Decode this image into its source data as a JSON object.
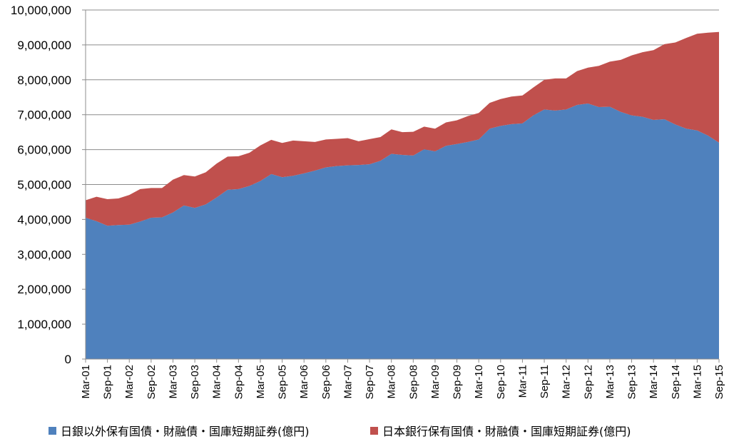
{
  "chart_data": {
    "type": "area",
    "stacked": true,
    "title": "",
    "xlabel": "",
    "ylabel": "",
    "ylim": [
      0,
      10000000
    ],
    "yticks": [
      0,
      1000000,
      2000000,
      3000000,
      4000000,
      5000000,
      6000000,
      7000000,
      8000000,
      9000000,
      10000000
    ],
    "ytick_labels": [
      "0",
      "1,000,000",
      "2,000,000",
      "3,000,000",
      "4,000,000",
      "5,000,000",
      "6,000,000",
      "7,000,000",
      "8,000,000",
      "9,000,000",
      "10,000,000"
    ],
    "x": [
      "Mar-01",
      "Jun-01",
      "Sep-01",
      "Dec-01",
      "Mar-02",
      "Jun-02",
      "Sep-02",
      "Dec-02",
      "Mar-03",
      "Jun-03",
      "Sep-03",
      "Dec-03",
      "Mar-04",
      "Jun-04",
      "Sep-04",
      "Dec-04",
      "Mar-05",
      "Jun-05",
      "Sep-05",
      "Dec-05",
      "Mar-06",
      "Jun-06",
      "Sep-06",
      "Dec-06",
      "Mar-07",
      "Jun-07",
      "Sep-07",
      "Dec-07",
      "Mar-08",
      "Jun-08",
      "Sep-08",
      "Dec-08",
      "Mar-09",
      "Jun-09",
      "Sep-09",
      "Dec-09",
      "Mar-10",
      "Jun-10",
      "Sep-10",
      "Dec-10",
      "Mar-11",
      "Jun-11",
      "Sep-11",
      "Dec-11",
      "Mar-12",
      "Jun-12",
      "Sep-12",
      "Dec-12",
      "Mar-13",
      "Jun-13",
      "Sep-13",
      "Dec-13",
      "Mar-14",
      "Jun-14",
      "Sep-14",
      "Dec-14",
      "Mar-15",
      "Jun-15",
      "Sep-15"
    ],
    "xtick_labels": [
      "Mar-01",
      "Sep-01",
      "Mar-02",
      "Sep-02",
      "Mar-03",
      "Sep-03",
      "Mar-04",
      "Sep-04",
      "Mar-05",
      "Sep-05",
      "Mar-06",
      "Sep-06",
      "Mar-07",
      "Sep-07",
      "Mar-08",
      "Sep-08",
      "Mar-09",
      "Sep-09",
      "Mar-10",
      "Sep-10",
      "Mar-11",
      "Sep-11",
      "Mar-12",
      "Sep-12",
      "Mar-13",
      "Sep-13",
      "Mar-14",
      "Sep-14",
      "Mar-15",
      "Sep-15"
    ],
    "grid": "horizontal",
    "legend_position": "bottom",
    "series": [
      {
        "name": "日銀以外保有国債・財融債・国庫短期証券(億円)",
        "color": "#4F81BD",
        "values": [
          4050000,
          3950000,
          3820000,
          3840000,
          3850000,
          3940000,
          4050000,
          4060000,
          4200000,
          4400000,
          4330000,
          4430000,
          4630000,
          4850000,
          4870000,
          4960000,
          5100000,
          5300000,
          5210000,
          5250000,
          5320000,
          5400000,
          5490000,
          5530000,
          5550000,
          5560000,
          5580000,
          5680000,
          5880000,
          5850000,
          5830000,
          6010000,
          5950000,
          6110000,
          6160000,
          6220000,
          6290000,
          6600000,
          6680000,
          6730000,
          6750000,
          6980000,
          7150000,
          7120000,
          7150000,
          7280000,
          7320000,
          7220000,
          7230000,
          7080000,
          6980000,
          6940000,
          6850000,
          6870000,
          6720000,
          6600000,
          6550000,
          6400000,
          6200000
        ]
      },
      {
        "name": "日本銀行保有国債・財融債・国庫短期証券(億円)",
        "color": "#C0504D",
        "values": [
          500000,
          700000,
          760000,
          760000,
          850000,
          930000,
          850000,
          840000,
          940000,
          870000,
          900000,
          920000,
          970000,
          950000,
          940000,
          950000,
          1020000,
          980000,
          980000,
          1010000,
          920000,
          820000,
          800000,
          780000,
          780000,
          680000,
          720000,
          680000,
          700000,
          650000,
          680000,
          650000,
          650000,
          670000,
          680000,
          740000,
          760000,
          740000,
          770000,
          790000,
          800000,
          800000,
          850000,
          920000,
          890000,
          970000,
          1030000,
          1180000,
          1290000,
          1490000,
          1720000,
          1850000,
          2000000,
          2150000,
          2350000,
          2600000,
          2770000,
          2950000,
          3170000
        ]
      }
    ]
  }
}
